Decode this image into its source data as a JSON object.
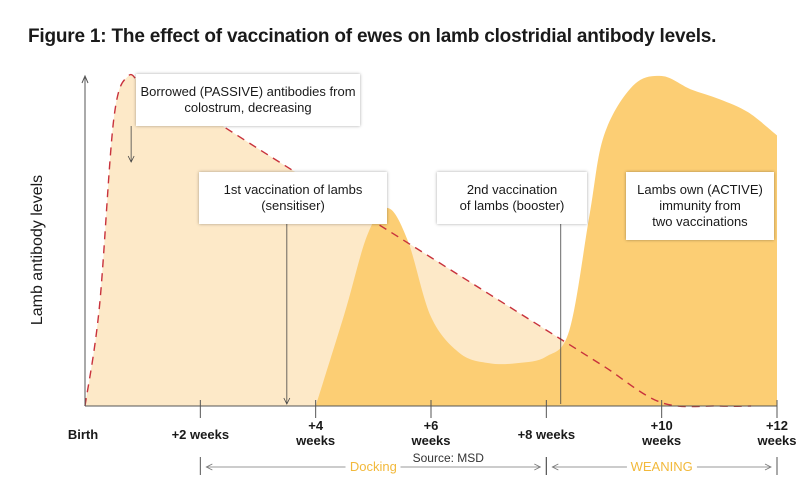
{
  "title": "Figure 1: The effect of vaccination of ewes on lamb clostridial antibody levels.",
  "source": "Source: MSD",
  "colors": {
    "passive_fill": "#fde9c8",
    "active_fill": "#fcce74",
    "passive_line": "#c8323c",
    "axis": "#555555",
    "period_text": "#f2b93b"
  },
  "chart_data": {
    "type": "area",
    "title": "Figure 1: The effect of vaccination of ewes on lamb clostridial antibody levels.",
    "xlabel": "",
    "ylabel": "Lamb antibody levels",
    "x_unit": "weeks",
    "xlim": [
      0,
      12
    ],
    "ylim": [
      0,
      100
    ],
    "x_ticks": [
      {
        "x": 0,
        "label": [
          "Birth"
        ]
      },
      {
        "x": 2,
        "label": [
          "+2 weeks"
        ]
      },
      {
        "x": 4,
        "label": [
          "+4",
          "weeks"
        ]
      },
      {
        "x": 6,
        "label": [
          "+6",
          "weeks"
        ]
      },
      {
        "x": 8,
        "label": [
          "+8 weeks"
        ]
      },
      {
        "x": 10,
        "label": [
          "+10",
          "weeks"
        ]
      },
      {
        "x": 12,
        "label": [
          "+12",
          "weeks"
        ]
      }
    ],
    "series": [
      {
        "name": "Borrowed (PASSIVE) antibodies from colostrum, decreasing",
        "style": "dashed",
        "x": [
          0,
          0.25,
          0.5,
          0.75,
          1.0,
          1.5,
          2.0,
          3.0,
          4.0,
          5.0,
          6.0,
          7.0,
          8.0,
          9.0,
          10.0,
          11.0,
          11.55
        ],
        "y": [
          0,
          30,
          87,
          100,
          97,
          93,
          89,
          78,
          67,
          56,
          45,
          34,
          23,
          12,
          1,
          0,
          0
        ]
      },
      {
        "name": "Lambs own (ACTIVE) immunity from two vaccinations",
        "style": "filled",
        "x": [
          4.0,
          4.5,
          4.9,
          5.25,
          5.6,
          6.0,
          6.5,
          7.0,
          7.5,
          8.0,
          8.4,
          8.75,
          9.0,
          9.5,
          10.0,
          10.5,
          11.0,
          11.5,
          12.0
        ],
        "y": [
          0,
          28,
          52,
          60,
          50,
          27,
          16,
          13,
          13,
          15,
          23,
          58,
          82,
          97,
          100,
          96,
          93,
          89,
          82
        ]
      }
    ],
    "annotations": [
      {
        "lines": [
          "Borrowed (PASSIVE) antibodies from",
          "colostrum, decreasing"
        ],
        "pointer_x": 0.8
      },
      {
        "lines": [
          "1st vaccination of lambs",
          "(sensitiser)"
        ],
        "pointer_x": 3.5
      },
      {
        "lines": [
          "2nd vaccination",
          "of lambs (booster)"
        ],
        "pointer_x": 8.25
      },
      {
        "lines": [
          "Lambs own (ACTIVE)",
          "immunity from",
          "two vaccinations"
        ],
        "pointer_x": null
      }
    ],
    "periods": [
      {
        "label": "Docking",
        "x_start": 2,
        "x_end": 8
      },
      {
        "label": "WEANING",
        "x_start": 8,
        "x_end": 12
      }
    ]
  }
}
